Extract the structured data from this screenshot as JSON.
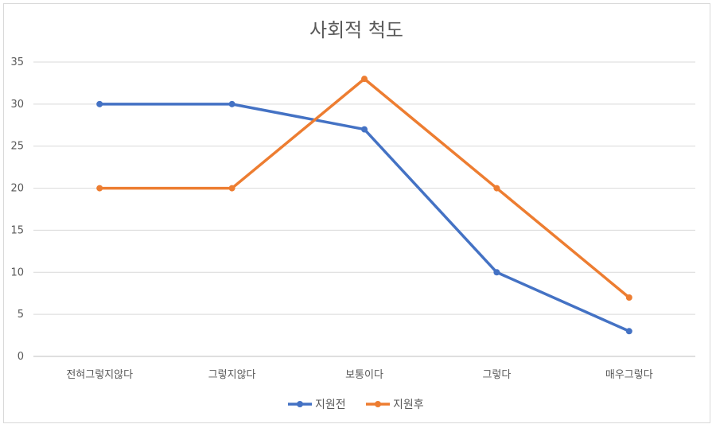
{
  "chart_data": {
    "type": "line",
    "title": "사회적 척도",
    "xlabel": "",
    "ylabel": "",
    "categories": [
      "전혀그렇지않다",
      "그렇지않다",
      "보통이다",
      "그렇다",
      "매우그렇다"
    ],
    "ylim": [
      0,
      35
    ],
    "yticks": [
      0,
      5,
      10,
      15,
      20,
      25,
      30,
      35
    ],
    "grid": true,
    "legend_position": "bottom",
    "series": [
      {
        "name": "지원전",
        "color": "#4472c4",
        "values": [
          30,
          30,
          27,
          10,
          3
        ]
      },
      {
        "name": "지원후",
        "color": "#ed7d31",
        "values": [
          20,
          20,
          33,
          20,
          7
        ]
      }
    ]
  }
}
